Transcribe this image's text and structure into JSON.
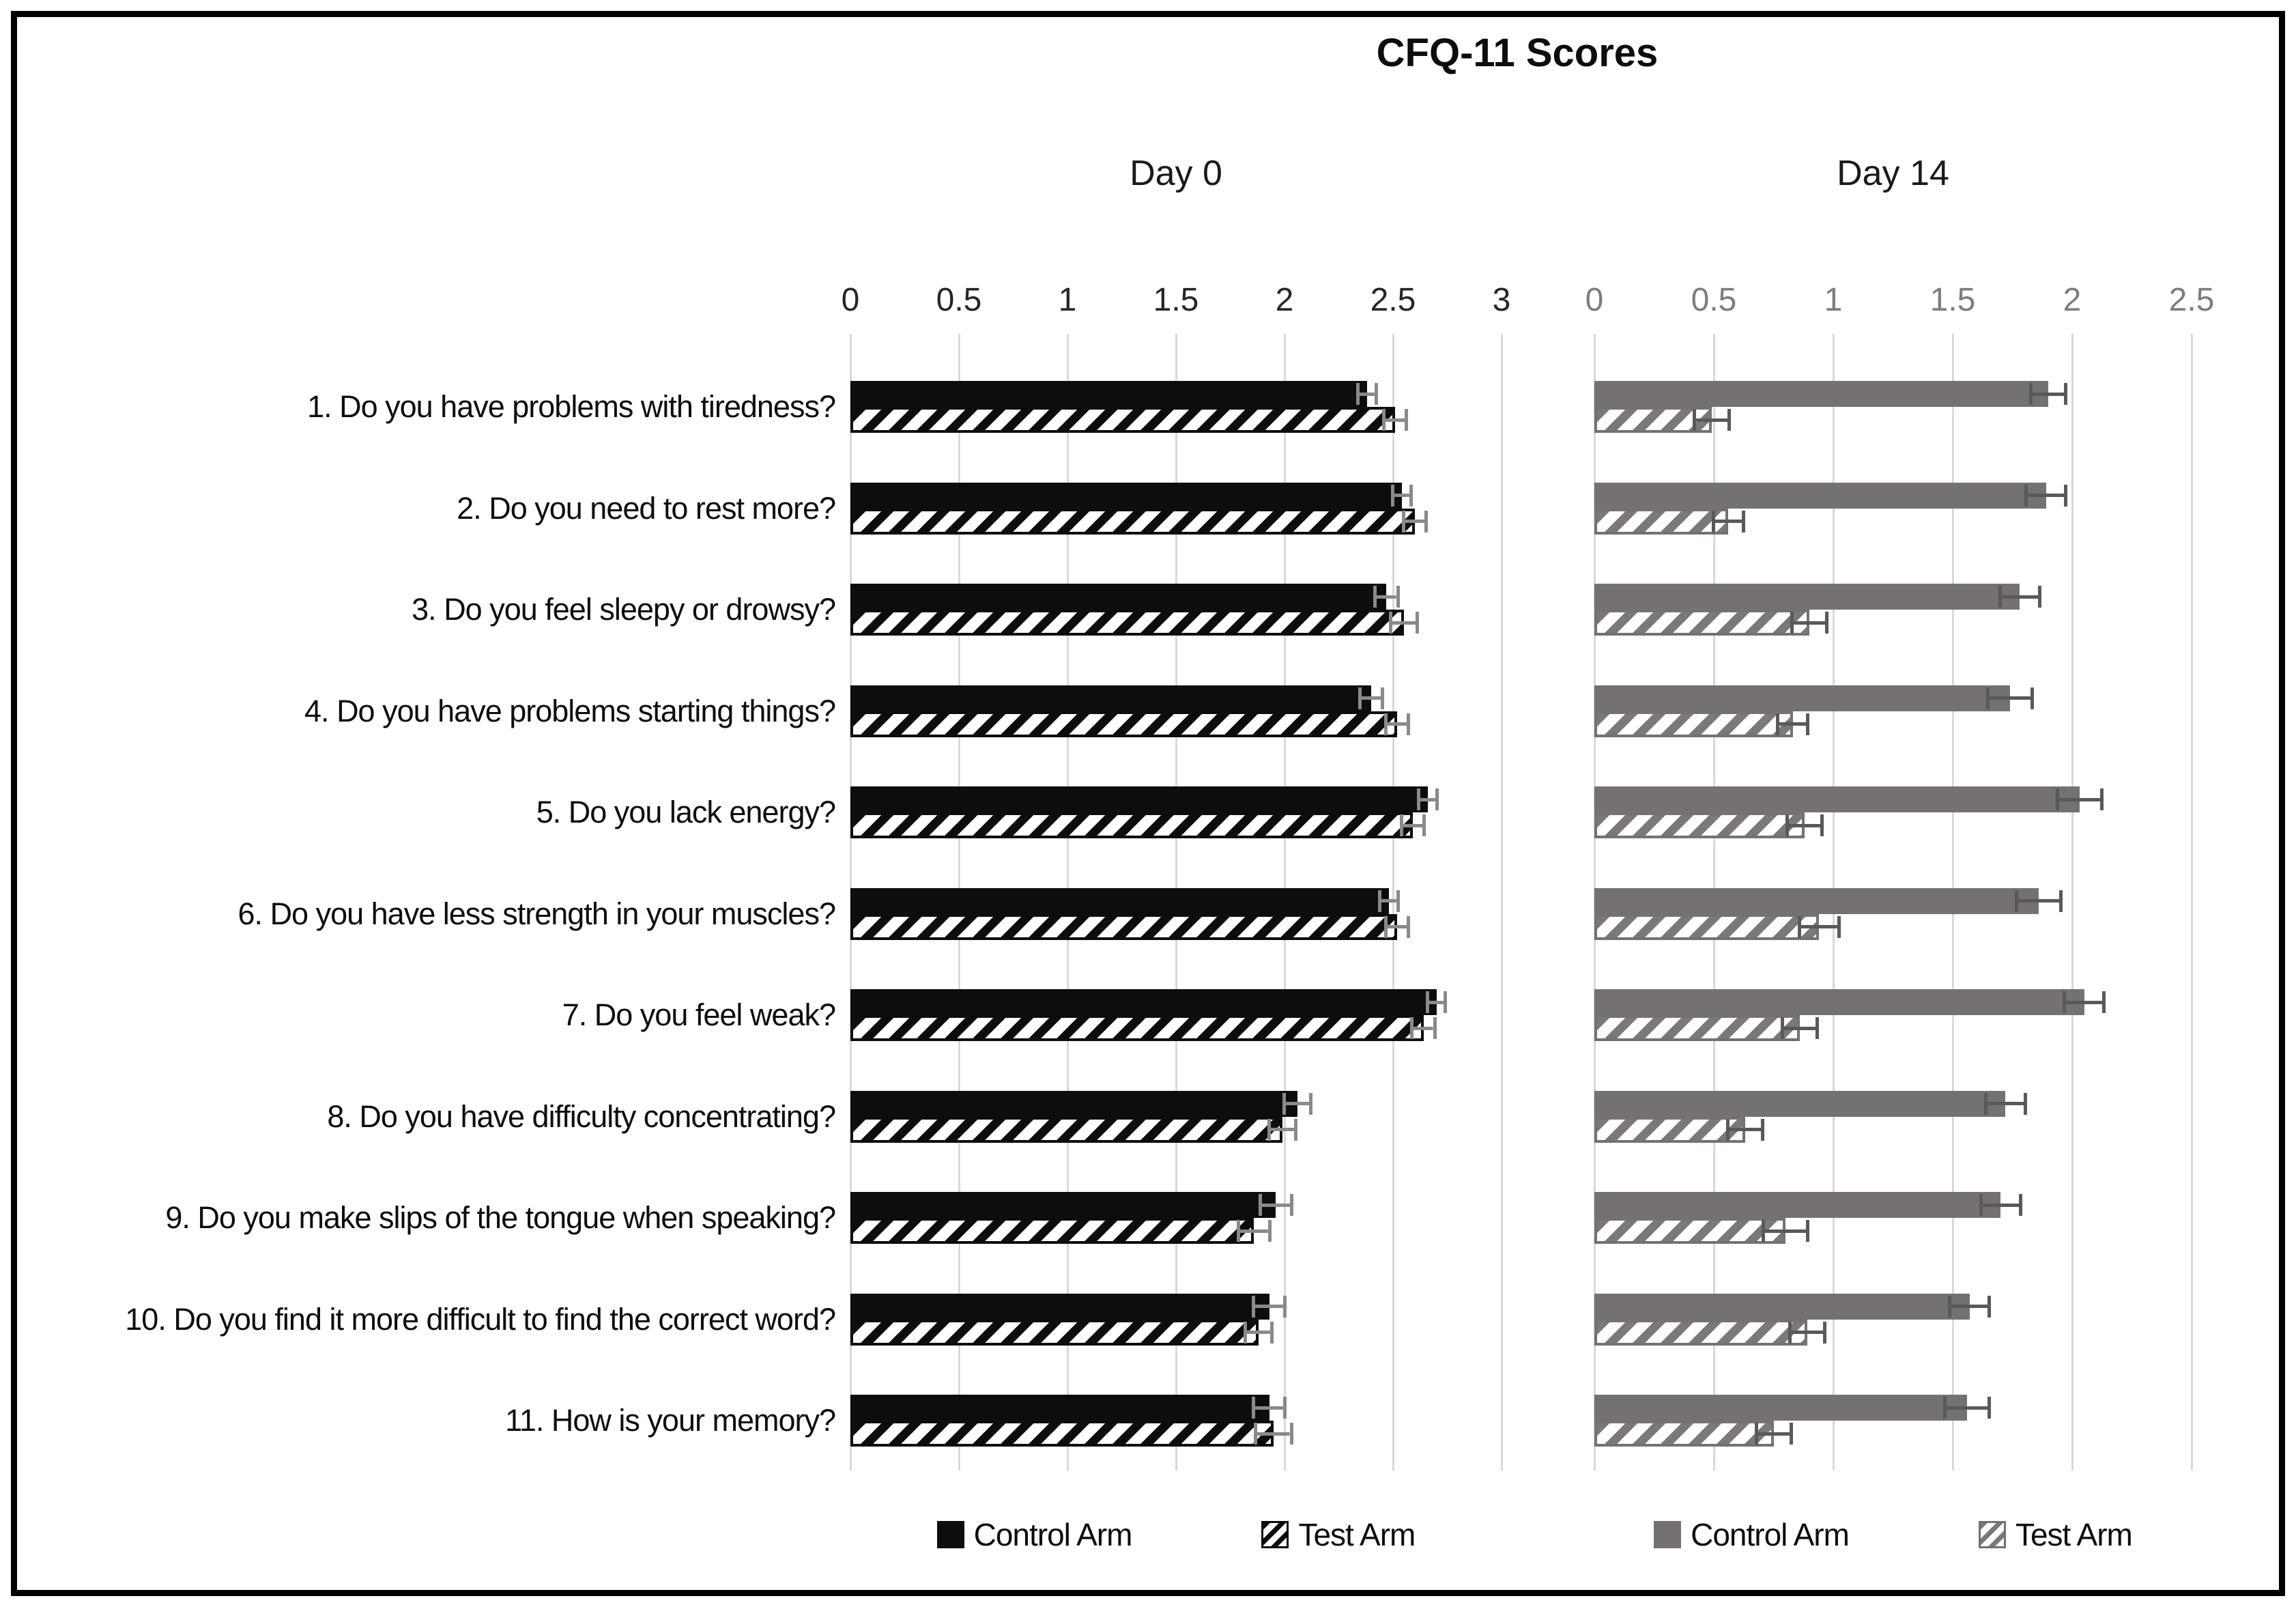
{
  "chart_data": {
    "type": "bar",
    "orientation": "horizontal",
    "title": "CFQ-11 Scores",
    "grid": true,
    "legend_position": "bottom",
    "categories": [
      "1. Do you have problems with tiredness?",
      "2. Do you need to rest more?",
      "3. Do you feel sleepy or drowsy?",
      "4. Do you have problems starting things?",
      "5. Do you lack energy?",
      "6. Do you have less strength in your muscles?",
      "7. Do you feel weak?",
      "8. Do you have difficulty concentrating?",
      "9. Do you make slips of the tongue when speaking?",
      "10. Do you find it more difficult to find the correct word?",
      "11. How is your memory?"
    ],
    "panels": [
      {
        "id": "day0",
        "label": "Day 0",
        "xlim": [
          0,
          3
        ],
        "xticks": [
          0,
          0.5,
          1,
          1.5,
          2,
          2.5,
          3
        ],
        "tick_color": "#262626",
        "error_bar_color": "#8a8a8a",
        "series": [
          {
            "name": "Control Arm",
            "style": "solid-black",
            "color": "#0d0d0d",
            "values": [
              2.38,
              2.54,
              2.47,
              2.4,
              2.66,
              2.48,
              2.7,
              2.06,
              1.96,
              1.93,
              1.93
            ],
            "errors": [
              0.05,
              0.05,
              0.06,
              0.06,
              0.05,
              0.05,
              0.05,
              0.07,
              0.08,
              0.08,
              0.08
            ]
          },
          {
            "name": "Test Arm",
            "style": "hatch-black",
            "color": "#0d0d0d",
            "values": [
              2.51,
              2.6,
              2.55,
              2.52,
              2.59,
              2.52,
              2.64,
              1.99,
              1.86,
              1.88,
              1.95
            ],
            "errors": [
              0.06,
              0.06,
              0.07,
              0.06,
              0.06,
              0.06,
              0.06,
              0.07,
              0.08,
              0.07,
              0.09
            ]
          }
        ]
      },
      {
        "id": "day14",
        "label": "Day 14",
        "xlim": [
          0,
          2.5
        ],
        "xticks": [
          0,
          0.5,
          1,
          1.5,
          2,
          2.5
        ],
        "tick_color": "#7d7d7d",
        "error_bar_color": "#595959",
        "series": [
          {
            "name": "Control Arm",
            "style": "solid-gray",
            "color": "#767171",
            "values": [
              1.9,
              1.89,
              1.78,
              1.74,
              2.03,
              1.86,
              2.05,
              1.72,
              1.7,
              1.57,
              1.56
            ],
            "errors": [
              0.08,
              0.09,
              0.09,
              0.1,
              0.1,
              0.1,
              0.09,
              0.09,
              0.09,
              0.09,
              0.1
            ]
          },
          {
            "name": "Test Arm",
            "style": "hatch-gray",
            "color": "#7d7878",
            "values": [
              0.49,
              0.56,
              0.9,
              0.83,
              0.88,
              0.94,
              0.86,
              0.63,
              0.8,
              0.89,
              0.75
            ],
            "errors": [
              0.08,
              0.07,
              0.08,
              0.07,
              0.08,
              0.09,
              0.08,
              0.08,
              0.1,
              0.08,
              0.08
            ]
          }
        ]
      }
    ]
  }
}
